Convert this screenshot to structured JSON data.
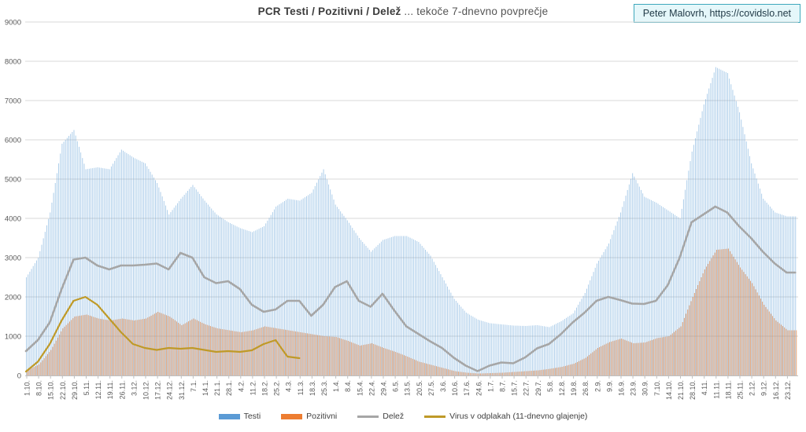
{
  "title": {
    "bold": "PCR Testi / Pozitivni / Delež",
    "regular": " ... tekoče 7-dnevno povprečje"
  },
  "watermark": {
    "text": "Peter Malovrh, https://covidslo.net"
  },
  "legend": [
    {
      "label": "Testi",
      "swatch": "bar"
    },
    {
      "label": "Pozitivni",
      "swatch": "bar"
    },
    {
      "label": "Delež",
      "swatch": "line"
    },
    {
      "label": "Virus v odplakah (11-dnevno glajenje)",
      "swatch": "line"
    }
  ],
  "chart_data": {
    "type": "bar",
    "subtype": "daily bars + overlay lines, 7-day moving averages",
    "title": "PCR Testi / Pozitivni / Delež ... tekoče 7-dnevno povprečje",
    "xlabel": "",
    "ylabel": "",
    "ylim": [
      0,
      9000
    ],
    "y_tick_step": 1000,
    "y_ticks": [
      "0",
      "1000",
      "2000",
      "3000",
      "4000",
      "5000",
      "6000",
      "7000",
      "8000",
      "9000"
    ],
    "grid": "horizontal",
    "legend_position": "bottom-center",
    "sampling_note": "series values sampled at each weekly x-axis label; bars are daily (interpolated between weekly samples)",
    "x_labels": [
      "1.10.",
      "8.10.",
      "15.10.",
      "22.10.",
      "29.10.",
      "5.11.",
      "12.11.",
      "19.11.",
      "26.11.",
      "3.12.",
      "10.12.",
      "17.12.",
      "24.12.",
      "31.12.",
      "7.1.",
      "14.1.",
      "21.1.",
      "28.1.",
      "4.2.",
      "11.2.",
      "18.2.",
      "25.2.",
      "4.3.",
      "11.3.",
      "18.3.",
      "25.3.",
      "1.4.",
      "8.4.",
      "15.4.",
      "22.4.",
      "29.4.",
      "6.5.",
      "13.5.",
      "20.5.",
      "27.5.",
      "3.6.",
      "10.6.",
      "17.6.",
      "24.6.",
      "1.7.",
      "8.7.",
      "15.7.",
      "22.7.",
      "29.7.",
      "5.8.",
      "12.8.",
      "19.8.",
      "26.8.",
      "2.9.",
      "9.9.",
      "16.9.",
      "23.9.",
      "30.9.",
      "7.10.",
      "14.10.",
      "21.10.",
      "28.10.",
      "4.11.",
      "11.11.",
      "18.11.",
      "25.11.",
      "2.12.",
      "9.12.",
      "16.12.",
      "23.12."
    ],
    "series": [
      {
        "name": "Testi",
        "type": "bar",
        "color": "#5B9BD5",
        "fill_opacity": 0.52,
        "values": [
          2500,
          3000,
          4150,
          5900,
          6250,
          5250,
          5300,
          5250,
          5750,
          5550,
          5400,
          4900,
          4100,
          4500,
          4850,
          4450,
          4100,
          3900,
          3750,
          3650,
          3800,
          4300,
          4500,
          4450,
          4650,
          5250,
          4350,
          3950,
          3500,
          3150,
          3450,
          3550,
          3550,
          3400,
          3050,
          2500,
          1950,
          1600,
          1420,
          1330,
          1300,
          1270,
          1260,
          1280,
          1230,
          1380,
          1580,
          2100,
          2850,
          3360,
          4150,
          5150,
          4550,
          4400,
          4200,
          4000,
          5700,
          6900,
          7850,
          7700,
          6700,
          5400,
          4500,
          4150,
          4050
        ]
      },
      {
        "name": "Pozitivni",
        "type": "bar",
        "color": "#ED7D31",
        "fill_opacity": 0.7,
        "values": [
          130,
          280,
          650,
          1200,
          1500,
          1550,
          1450,
          1400,
          1450,
          1400,
          1450,
          1620,
          1500,
          1280,
          1450,
          1300,
          1200,
          1150,
          1100,
          1150,
          1250,
          1200,
          1150,
          1100,
          1050,
          1000,
          980,
          880,
          760,
          820,
          700,
          600,
          480,
          350,
          270,
          190,
          110,
          70,
          50,
          60,
          70,
          90,
          110,
          130,
          170,
          220,
          300,
          450,
          700,
          850,
          940,
          820,
          840,
          950,
          1000,
          1250,
          2000,
          2700,
          3200,
          3230,
          2750,
          2350,
          1800,
          1400,
          1150
        ]
      },
      {
        "name": "Delež",
        "type": "line",
        "color": "#A6A6A6",
        "stroke_width": 2.6,
        "values": [
          620,
          900,
          1350,
          2200,
          2950,
          3000,
          2800,
          2700,
          2800,
          2800,
          2820,
          2850,
          2700,
          3120,
          3000,
          2500,
          2350,
          2400,
          2200,
          1800,
          1620,
          1680,
          1900,
          1900,
          1520,
          1800,
          2250,
          2400,
          1900,
          1750,
          2080,
          1650,
          1250,
          1060,
          870,
          700,
          450,
          250,
          110,
          250,
          330,
          310,
          460,
          690,
          800,
          1050,
          1350,
          1600,
          1900,
          2000,
          1920,
          1830,
          1820,
          1900,
          2300,
          3000,
          3900,
          4100,
          4300,
          4150,
          3800,
          3500,
          3150,
          2850,
          2620
        ]
      },
      {
        "name": "Virus v odplakah (11-dnevno glajenje)",
        "type": "line",
        "color": "#BF9A28",
        "stroke_width": 2.2,
        "values": [
          100,
          350,
          800,
          1400,
          1900,
          2000,
          1800,
          1450,
          1100,
          800,
          700,
          650,
          700,
          680,
          700,
          650,
          600,
          620,
          600,
          640,
          800,
          900,
          480,
          440,
          null,
          null,
          null,
          null,
          null,
          null,
          null,
          null,
          null,
          null,
          null,
          null,
          null,
          null,
          null,
          null,
          null,
          null,
          null,
          null,
          null,
          null,
          null,
          null,
          null,
          null,
          null,
          null,
          null,
          null,
          null,
          null,
          null,
          null,
          null,
          null,
          null,
          null,
          null,
          null,
          null
        ]
      }
    ],
    "axis_color": "#BFBFBF",
    "gridline_color": "#D9D9D9",
    "tick_label_color": "#595959"
  }
}
